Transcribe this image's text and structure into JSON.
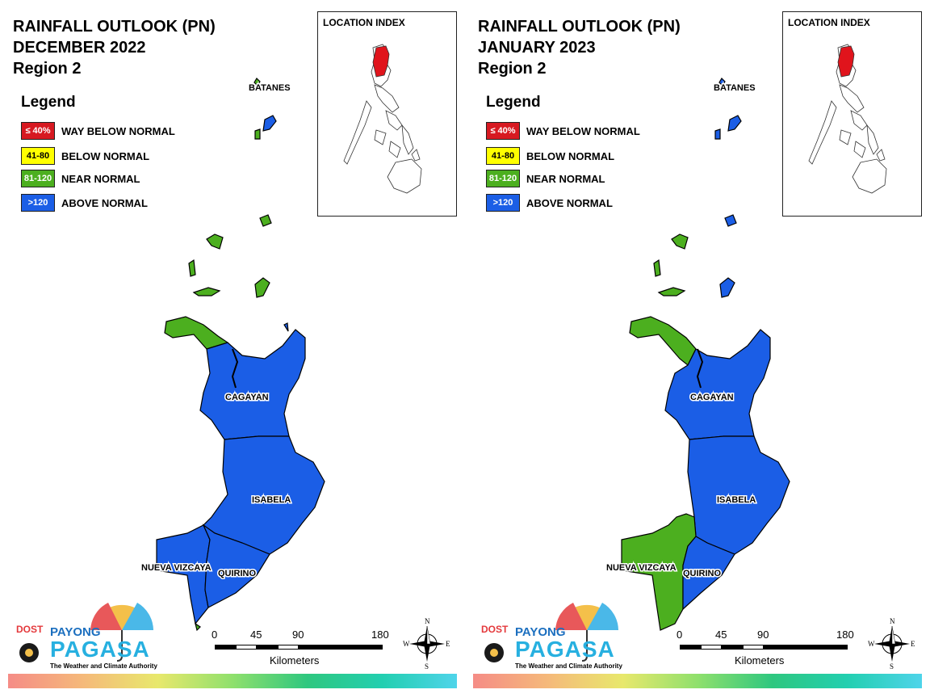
{
  "legend": {
    "title": "Legend",
    "items": [
      {
        "code": "≤ 40%",
        "label": "WAY BELOW NORMAL",
        "color": "#d71921",
        "text_color": "#ffffff"
      },
      {
        "code": "41-80",
        "label": "BELOW NORMAL",
        "color": "#ffff00",
        "text_color": "#000000"
      },
      {
        "code": "81-120",
        "label": "NEAR NORMAL",
        "color": "#4caf1f",
        "text_color": "#ffffff"
      },
      {
        "code": ">120",
        "label": "ABOVE NORMAL",
        "color": "#1b5ee6",
        "text_color": "#ffffff"
      }
    ]
  },
  "inset": {
    "title": "LOCATION INDEX",
    "highlight_color": "#e0141c"
  },
  "scale": {
    "ticks": [
      "0",
      "45",
      "90",
      "180"
    ],
    "unit": "Kilometers"
  },
  "compass": {
    "n": "N",
    "s": "S",
    "e": "E",
    "w": "W"
  },
  "logo": {
    "dost": "DOST",
    "payong": "PAYONG",
    "pagasa": "PAGASA",
    "tagline": "The Weather and Climate Authority"
  },
  "maps": [
    {
      "title_line1": "RAINFALL OUTLOOK (PN)",
      "title_line2": "DECEMBER 2022",
      "title_line3": "Region 2",
      "labels": {
        "batanes": "BATANES",
        "cagayan": "CAGAYAN",
        "isabela": "ISABELA",
        "nueva_vizcaya": "NUEVA VIZCAYA",
        "quirino": "QUIRINO"
      },
      "categories": {
        "batanes_islands": "NEAR NORMAL",
        "babuyan_islands": "NEAR NORMAL",
        "cagayan_northwest": "NEAR NORMAL",
        "cagayan": "ABOVE NORMAL",
        "isabela": "ABOVE NORMAL",
        "nueva_vizcaya": "ABOVE NORMAL",
        "quirino": "ABOVE NORMAL"
      }
    },
    {
      "title_line1": "RAINFALL OUTLOOK (PN)",
      "title_line2": "JANUARY 2023",
      "title_line3": "Region 2",
      "labels": {
        "batanes": "BATANES",
        "cagayan": "CAGAYAN",
        "isabela": "ISABELA",
        "nueva_vizcaya": "NUEVA VIZCAYA",
        "quirino": "QUIRINO"
      },
      "categories": {
        "batanes_islands": "ABOVE NORMAL",
        "babuyan_islands": "NEAR NORMAL",
        "cagayan_northwest": "NEAR NORMAL",
        "cagayan": "ABOVE NORMAL",
        "isabela": "ABOVE NORMAL",
        "nueva_vizcaya": "NEAR NORMAL",
        "quirino": "ABOVE NORMAL"
      }
    }
  ]
}
